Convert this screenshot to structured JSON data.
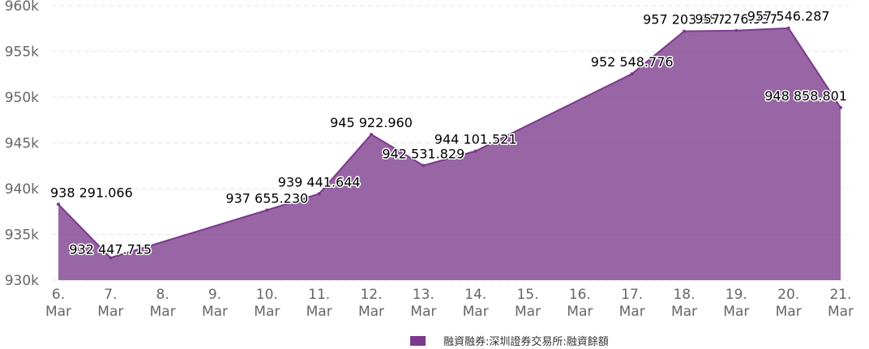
{
  "chart_data": {
    "type": "area",
    "title": "",
    "xlabel": "",
    "ylabel": "",
    "categories": [
      "6. Mar",
      "7. Mar",
      "8. Mar",
      "9. Mar",
      "10. Mar",
      "11. Mar",
      "12. Mar",
      "13. Mar",
      "14. Mar",
      "15. Mar",
      "16. Mar",
      "17. Mar",
      "18. Mar",
      "19. Mar",
      "20. Mar",
      "21. Mar"
    ],
    "y_ticks": [
      "930k",
      "935k",
      "940k",
      "945k",
      "950k",
      "955k",
      "960k"
    ],
    "y_tick_values": [
      930000,
      935000,
      940000,
      945000,
      950000,
      955000,
      960000
    ],
    "ylim": [
      930000,
      960000
    ],
    "grid": true,
    "legend_position": "bottom-center",
    "series": [
      {
        "name": "融資融券:深圳證券交易所:融資餘額",
        "color": "#7b3a8c",
        "points": [
          {
            "x": "6. Mar",
            "y": 938291.066,
            "label": "938 291.066"
          },
          {
            "x": "7. Mar",
            "y": 932447.715,
            "label": "932 447.715"
          },
          {
            "x": "10. Mar",
            "y": 937655.23,
            "label": "937 655.230"
          },
          {
            "x": "11. Mar",
            "y": 939441.644,
            "label": "939 441.644"
          },
          {
            "x": "12. Mar",
            "y": 945922.96,
            "label": "945 922.960"
          },
          {
            "x": "13. Mar",
            "y": 942531.829,
            "label": "942 531.829"
          },
          {
            "x": "14. Mar",
            "y": 944101.521,
            "label": "944 101.521"
          },
          {
            "x": "17. Mar",
            "y": 952548.776,
            "label": "952 548.776"
          },
          {
            "x": "18. Mar",
            "y": 957203.957,
            "label": "957 203.957"
          },
          {
            "x": "19. Mar",
            "y": 957276.937,
            "label": "957 276.937"
          },
          {
            "x": "20. Mar",
            "y": 957546.287,
            "label": "957 546.287"
          },
          {
            "x": "21. Mar",
            "y": 948858.801,
            "label": "948 858.801"
          }
        ]
      }
    ]
  }
}
